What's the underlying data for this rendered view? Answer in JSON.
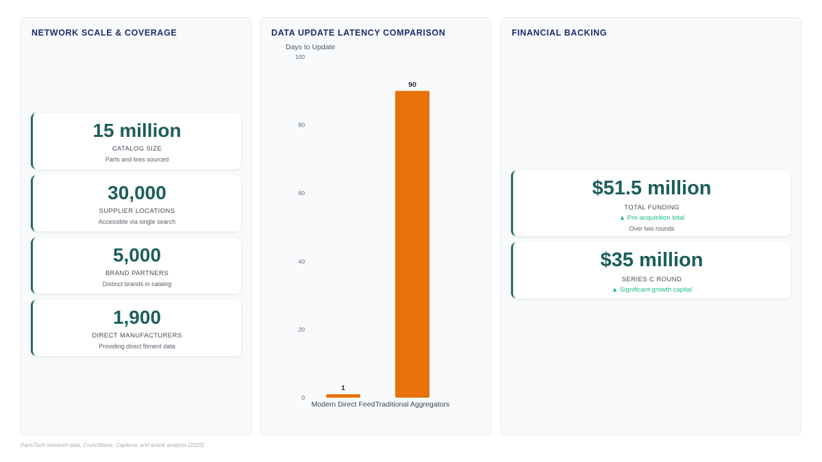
{
  "network": {
    "title": "NETWORK SCALE & COVERAGE",
    "stats": [
      {
        "value": "15 million",
        "label": "CATALOG SIZE",
        "sub": "Parts and tires sourced"
      },
      {
        "value": "30,000",
        "label": "SUPPLIER LOCATIONS",
        "sub": "Accessible via single search"
      },
      {
        "value": "5,000",
        "label": "BRAND PARTNERS",
        "sub": "Distinct brands in catalog"
      },
      {
        "value": "1,900",
        "label": "DIRECT MANUFACTURERS",
        "sub": "Providing direct fitment data"
      }
    ]
  },
  "latency": {
    "title": "DATA UPDATE LATENCY COMPARISON"
  },
  "financial": {
    "title": "FINANCIAL BACKING",
    "stats": [
      {
        "value": "$51.5 million",
        "label": "TOTAL FUNDING",
        "growth": "▲ Pre-acquisition total",
        "sub": "Over two rounds"
      },
      {
        "value": "$35 million",
        "label": "SERIES C ROUND",
        "growth": "▲ Significant growth capital"
      }
    ]
  },
  "source": "PartsTech research data, Crunchbase, Capterra, and article analysis (2025)",
  "colors": {
    "bar": "#e8710a",
    "accent": "#1f6b68",
    "growth": "#17b890"
  },
  "chart_data": {
    "type": "bar",
    "title": "DATA UPDATE LATENCY COMPARISON",
    "categories": [
      "Modern Direct Feed",
      "Traditional Aggregators"
    ],
    "values": [
      1,
      90
    ],
    "xlabel": "",
    "ylabel": "Days to Update",
    "ylim": [
      0,
      100
    ],
    "yticks": [
      0,
      20,
      40,
      60,
      80,
      100
    ],
    "grid": false,
    "legend": "none",
    "data_labels": true
  }
}
